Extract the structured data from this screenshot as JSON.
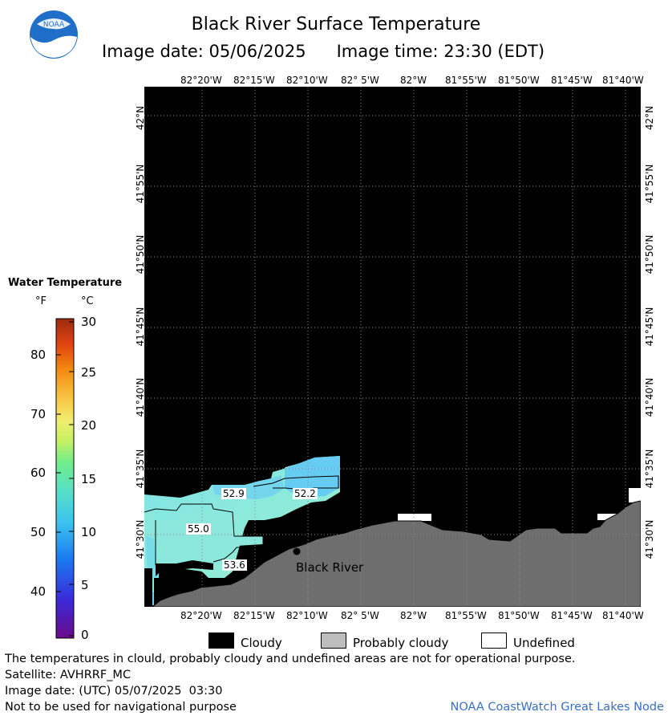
{
  "header": {
    "title": "Black River Surface Temperature",
    "image_date": "Image date: 05/06/2025",
    "image_time": "Image time: 23:30 (EDT)",
    "logo_text": "NOAA"
  },
  "axes": {
    "lon_labels": [
      "82°20'W",
      "82°15'W",
      "82°10'W",
      "82° 5'W",
      "82°W",
      "81°55'W",
      "81°50'W",
      "81°45'W",
      "81°40'W"
    ],
    "lat_labels": [
      "42°N",
      "41°55'N",
      "41°50'N",
      "41°45'N",
      "41°40'N",
      "41°35'N",
      "41°30'N"
    ]
  },
  "legend": {
    "title": "Water Temperature",
    "unit_f": "°F",
    "unit_c": "°C",
    "ticks_f": [
      "80",
      "70",
      "60",
      "50",
      "40"
    ],
    "ticks_c": [
      "30",
      "25",
      "20",
      "15",
      "10",
      "5",
      "0"
    ]
  },
  "map": {
    "temp_labels": [
      "52.9",
      "52.2",
      "55.0",
      "53.6"
    ],
    "place": "Black River",
    "colors": {
      "cloud": "#000000",
      "land": "#6e6e6e",
      "water": "#8fe8e0",
      "water_blue": "#64c8f0"
    }
  },
  "key": {
    "cloudy": "Cloudy",
    "probably_cloudy": "Probably cloudy",
    "undefined": "Undefined"
  },
  "footer": {
    "disclaimer": "The temperatures in clould, probably cloudy and undefined areas are not for operational purpose.",
    "satellite": "Satellite: AVHRRF_MC",
    "utc_date": "Image date: (UTC) 05/07/2025  03:30",
    "nav_warning": "Not to be used for navigational purpose",
    "credit": "NOAA CoastWatch Great Lakes Node"
  }
}
